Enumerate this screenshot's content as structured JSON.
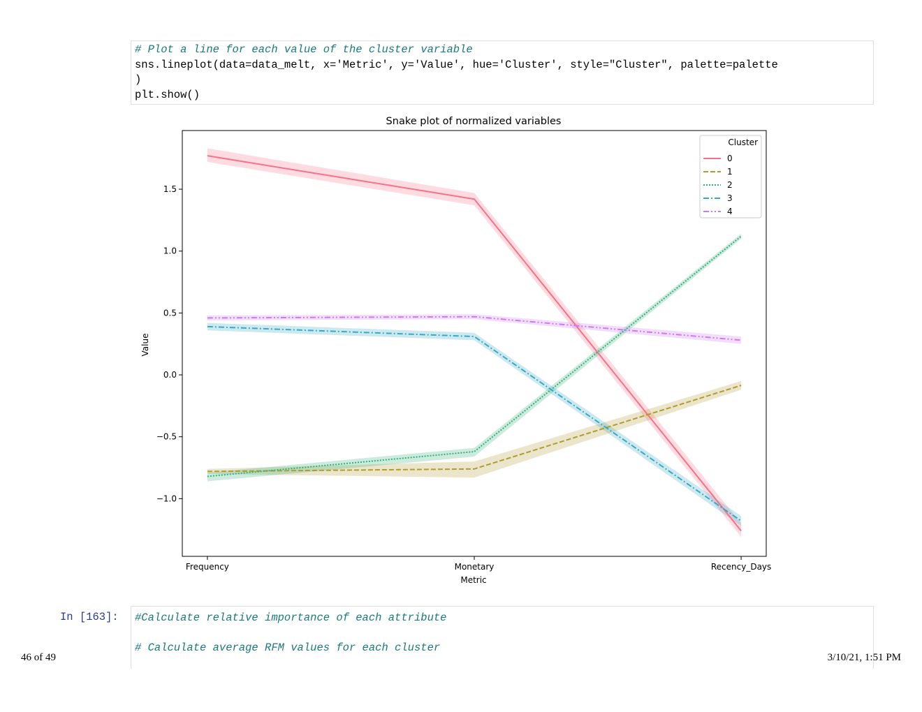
{
  "code_cell": {
    "lines": [
      "# Plot a line for each value of the cluster variable",
      "sns.lineplot(data=data_melt, x='Metric', y='Value', hue='Cluster', style=\"Cluster\", palette=palette",
      ")",
      "plt.show()"
    ]
  },
  "chart_data": {
    "type": "line",
    "title": "Snake plot of normalized variables",
    "xlabel": "Metric",
    "ylabel": "Value",
    "categories": [
      "Frequency",
      "Monetary",
      "Recency_Days"
    ],
    "ylim": [
      -1.466,
      1.974
    ],
    "yticks": [
      {
        "value": -1.0,
        "label": "−1.0"
      },
      {
        "value": -0.5,
        "label": "−0.5"
      },
      {
        "value": 0,
        "label": "0.0"
      },
      0.5,
      {
        "value": 1.0,
        "label": "1.0"
      },
      1.5
    ],
    "legend_title": "Cluster",
    "legend": "upper right",
    "series": [
      {
        "name": "0",
        "color": "#f77189",
        "linestyle": "solid",
        "values": [
          1.77,
          1.42,
          -1.26
        ],
        "ci_low": [
          1.72,
          1.37,
          -1.31
        ],
        "ci_high": [
          1.83,
          1.47,
          -1.2
        ]
      },
      {
        "name": "1",
        "color": "#ae9d31",
        "linestyle": "dashed",
        "values": [
          -0.78,
          -0.76,
          -0.085
        ],
        "ci_low": [
          -0.8,
          -0.83,
          -0.12
        ],
        "ci_high": [
          -0.76,
          -0.7,
          -0.05
        ]
      },
      {
        "name": "2",
        "color": "#33b07a",
        "linestyle": "dotted",
        "values": [
          -0.82,
          -0.62,
          1.12
        ],
        "ci_low": [
          -0.86,
          -0.66,
          1.1
        ],
        "ci_high": [
          -0.79,
          -0.59,
          1.14
        ]
      },
      {
        "name": "3",
        "color": "#38a9c5",
        "linestyle": "dashdot",
        "values": [
          0.39,
          0.31,
          -1.18
        ],
        "ci_low": [
          0.36,
          0.28,
          -1.22
        ],
        "ci_high": [
          0.42,
          0.34,
          -1.14
        ]
      },
      {
        "name": "4",
        "color": "#cc7af4",
        "linestyle": "dashdotdot",
        "values": [
          0.46,
          0.47,
          0.28
        ],
        "ci_low": [
          0.44,
          0.45,
          0.25
        ],
        "ci_high": [
          0.48,
          0.49,
          0.31
        ]
      }
    ]
  },
  "next_cell": {
    "prompt": "In [163]:",
    "lines": [
      "#Calculate relative importance of each attribute",
      "",
      "# Calculate average RFM values for each cluster"
    ]
  },
  "footer": {
    "page": "46 of 49",
    "timestamp": "3/10/21, 1:51 PM"
  }
}
